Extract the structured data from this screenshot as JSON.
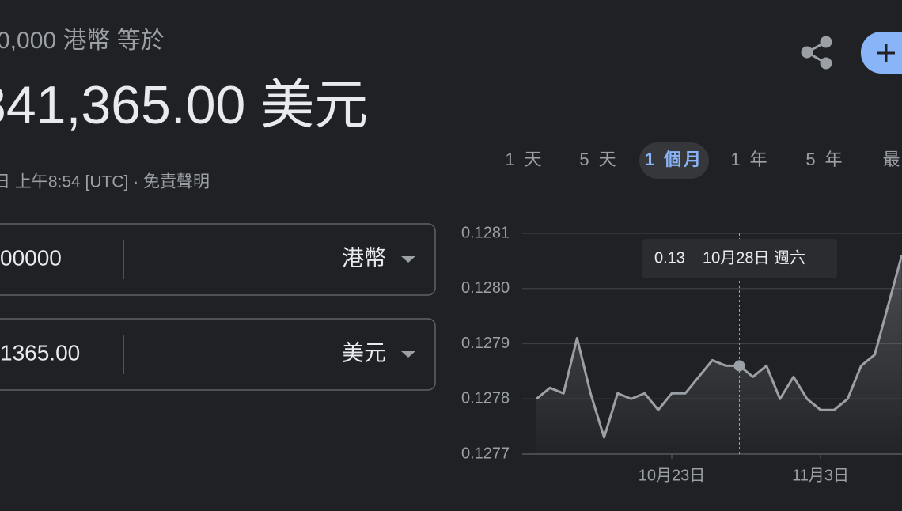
{
  "header": {
    "amount_line": "0,000 港幣 等於",
    "result": "841,365.00 美元",
    "timestamp": "日 上午8:54 [UTC] · 免責聲明"
  },
  "converter": [
    {
      "value": "00000",
      "currency": "港幣"
    },
    {
      "value": "1365.00",
      "currency": "美元"
    }
  ],
  "ranges": [
    "1 天",
    "5 天",
    "1 個月",
    "1 年",
    "5 年",
    "最"
  ],
  "selected_range": 2,
  "chart_data": {
    "type": "line",
    "color": "#9aa0a6",
    "categories": [
      null,
      null,
      null,
      null,
      null,
      null,
      null,
      null,
      null,
      null,
      "10月23日",
      null,
      null,
      null,
      null,
      null,
      null,
      null,
      null,
      null,
      null,
      "11月3日",
      null,
      null,
      null,
      null,
      null,
      null
    ],
    "values": [
      0.1278,
      0.12782,
      0.12781,
      0.12791,
      0.12781,
      0.12773,
      0.12781,
      0.1278,
      0.12781,
      0.12778,
      0.12781,
      0.12781,
      0.12784,
      0.12787,
      0.12786,
      0.12786,
      0.12784,
      0.12786,
      0.1278,
      0.12784,
      0.1278,
      0.12778,
      0.12778,
      0.1278,
      0.12786,
      0.12788,
      0.12797,
      0.12806
    ],
    "ylim": [
      0.1277,
      0.1281
    ],
    "yticks": [
      0.1277,
      0.1278,
      0.1279,
      0.128,
      0.1281
    ],
    "ytick_labels": [
      "0.1277",
      "0.1278",
      "0.1279",
      "0.1280",
      "0.1281"
    ],
    "grid": true,
    "tooltip": {
      "index": 15,
      "value_label": "0.13",
      "date": "10月28日 週六"
    }
  }
}
